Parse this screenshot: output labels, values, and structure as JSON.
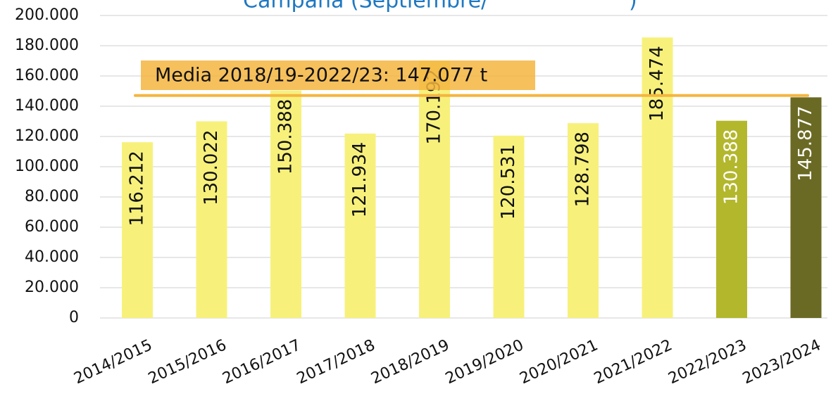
{
  "chart_data": {
    "type": "bar",
    "title": [
      "Campaña (Septiembre/",
      ")"
    ],
    "categories": [
      "2014/2015",
      "2015/2016",
      "2016/2017",
      "2017/2018",
      "2018/2019",
      "2019/2020",
      "2020/2021",
      "2021/2022",
      "2022/2023",
      "2023/2024"
    ],
    "values": [
      116212,
      130022,
      150388,
      121934,
      170192,
      120531,
      128798,
      185474,
      130388,
      145877
    ],
    "value_labels": [
      "116.212",
      "130.022",
      "150.388",
      "121.934",
      "170.192",
      "120.531",
      "128.798",
      "185.474",
      "130.388",
      "145.877"
    ],
    "colors": [
      "#f7f17c",
      "#f7f17c",
      "#f7f17c",
      "#f7f17c",
      "#f7f17c",
      "#f7f17c",
      "#f7f17c",
      "#f7f17c",
      "#b3b72c",
      "#6b6a24"
    ],
    "ylim": [
      0,
      200000
    ],
    "yticks": [
      0,
      {
        "value": 20000,
        "label": "20.000"
      },
      {
        "value": 40000,
        "label": "40.000"
      },
      {
        "value": 60000,
        "label": "60.000"
      },
      {
        "value": 80000,
        "label": "80.000"
      },
      {
        "value": 100000,
        "label": "100.000"
      },
      {
        "value": 120000,
        "label": "120.000"
      },
      {
        "value": 140000,
        "label": "140.000"
      },
      {
        "value": 160000,
        "label": "160.000"
      },
      {
        "value": 180000,
        "label": "180.000"
      },
      {
        "value": 200000,
        "label": "200.000"
      }
    ],
    "grid": true,
    "reference_line": {
      "value": 147077,
      "label": "Media 2018/19-2022/23: 147.077 t",
      "color": "#f5b53f"
    }
  }
}
